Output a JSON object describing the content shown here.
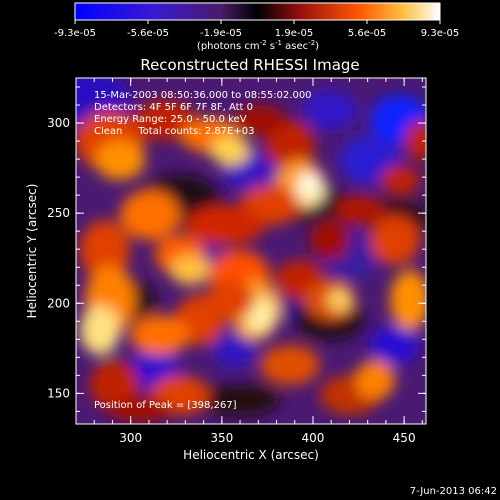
{
  "colorbar": {
    "tick_labels": [
      "-9.3e-05",
      "-5.6e-05",
      "-1.9e-05",
      "1.9e-05",
      "5.6e-05",
      "9.3e-05"
    ],
    "unit_label": "(photons cm",
    "unit_exp1": "-2",
    "unit_mid": " s",
    "unit_exp2": "-1",
    "unit_end": " asec",
    "unit_exp3": "-2",
    "unit_close": ")",
    "range": [
      -9.3e-05,
      9.3e-05
    ]
  },
  "chart_data": {
    "type": "heatmap",
    "title": "Reconstructed RHESSI Image",
    "xlabel": "Heliocentric X (arcsec)",
    "ylabel": "Heliocentric Y (arcsec)",
    "xlim": [
      270,
      462
    ],
    "ylim": [
      133,
      325
    ],
    "x_ticks": [
      300,
      350,
      400,
      450
    ],
    "y_ticks": [
      150,
      200,
      250,
      300
    ],
    "colormap": [
      "#0000ff",
      "#5a1a9c",
      "#2b0a20",
      "#8a1010",
      "#e03000",
      "#ff8a00",
      "#ffd35a",
      "#ffffff"
    ],
    "peak": {
      "x": 398,
      "y": 267
    },
    "annotations": [
      "15-Mar-2003 08:50:36.000 to 08:55:02.000",
      "Detectors: 4F 5F 6F 7F 8F, Att 0",
      "Energy Range: 25.0 - 50.0 keV",
      "Clean     Total counts: 2.87E+03"
    ],
    "peak_label": "Position of Peak = [398,267]"
  },
  "footer": {
    "timestamp": "7-Jun-2013 06:42"
  }
}
